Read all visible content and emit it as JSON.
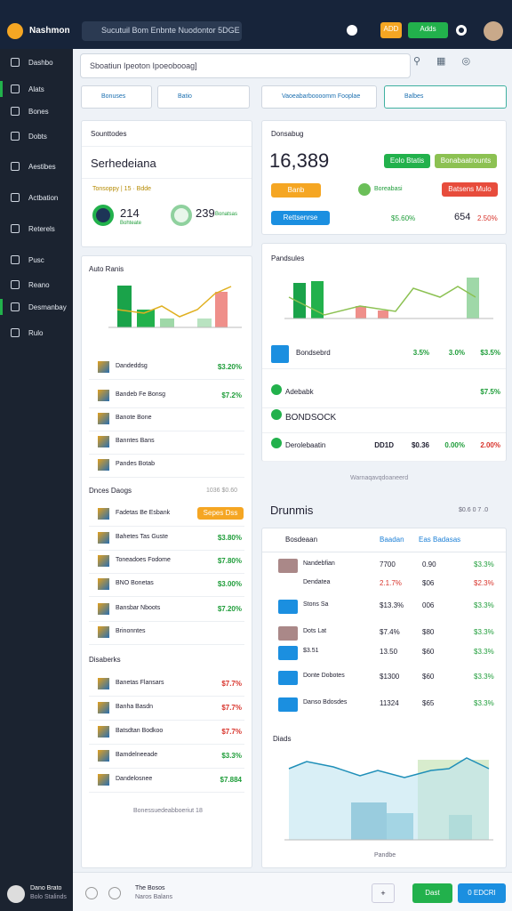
{
  "header": {
    "brand": "Nashmon",
    "search": "Sucutuil Bom Enbnte Nuodontor 5DGE",
    "button_orange": "ADD",
    "button_green": "Adds"
  },
  "sidebar": {
    "items": [
      "Dashbo",
      "Alats",
      "Bones",
      "Dobts",
      "Aestibes",
      "Actbation",
      "Reterels",
      "Pusc",
      "Reano",
      "Desmanbay",
      "Rulo"
    ],
    "user_name": "Dano Brato",
    "user_sub": "Bolo Stalinds"
  },
  "searchbar": {
    "placeholder": "Sboatiun Ipeoton Ipoeobooag]"
  },
  "filters": [
    "Bonuses",
    "Batio",
    "Vaoeabarboooomm Fooplae",
    "Balbes"
  ],
  "summary_card": {
    "header": "Sounttodes",
    "title": "Serhedeiana",
    "row": "Tonsoppy | 15 · Bdde",
    "stats": [
      {
        "value": "214",
        "label": "Bohteate"
      },
      {
        "value": "239",
        "label": "Bonatsas"
      }
    ]
  },
  "list_card": {
    "header": "Auto Ranis",
    "items": [
      {
        "label": "Dandeddsg",
        "value": "$3.20%"
      },
      {
        "label": "Bandeb Fe Bonsg",
        "value": "$7.2%"
      },
      {
        "label": "Banote Bone",
        "value": ""
      },
      {
        "label": "Banntes Bans",
        "value": ""
      },
      {
        "label": "Pandes Botab",
        "value": ""
      }
    ],
    "section1": {
      "title": "Dnces Daogs",
      "note": "1036 $0.60"
    },
    "items2": [
      {
        "label": "Fadetas Be Esbank",
        "value": "Sepes Dss"
      },
      {
        "label": "Bahetes Tas Guste",
        "value": "$3.80%"
      },
      {
        "label": "Toneadoes Fodome",
        "value": "$7.80%"
      },
      {
        "label": "BNO Bonetas",
        "value": "$3.00%"
      },
      {
        "label": "Bansbar Nboots",
        "value": "$7.20%"
      },
      {
        "label": "Brinonntes",
        "value": ""
      }
    ],
    "section2": {
      "title": "Disaberks"
    },
    "items3": [
      {
        "label": "Banetas Flansars",
        "value": "$7.7%"
      },
      {
        "label": "Banha Basdn",
        "value": "$7.7%"
      },
      {
        "label": "Batsdtan Bodkoo",
        "value": "$7.7%"
      },
      {
        "label": "Bamdelneeade",
        "value": "$3.3%"
      },
      {
        "label": "Dandelosnee",
        "value": "$7.884"
      }
    ],
    "footer": "Bonessuedeabboeriut 18"
  },
  "balance_card": {
    "header": "Donsabug",
    "amount": "16,389",
    "button1": "Eolo Btatis",
    "button2": "Bonabaatrounts",
    "chip": "Banb",
    "avatar_label": "Boreabasi",
    "button_red": "Batsens Mulo",
    "button_blue": "Rettsenrse",
    "stat1": "$5.60%",
    "stat2": "654",
    "stat3": "2.50%"
  },
  "chart_card": {
    "header": "Pandsules",
    "rows": [
      {
        "label": "Bondsebrd",
        "values": [
          "3.5%",
          "3.0%",
          "$3.5%"
        ]
      },
      {
        "label": "Adebabk",
        "values": [
          "$7.5%"
        ]
      },
      {
        "label": "BONDSOCK",
        "values": []
      },
      {
        "label": "Derolebaatin",
        "values": [
          "DD1D",
          "$0.36",
          "0.00%",
          "2.00%"
        ]
      }
    ]
  },
  "note": "Warnaqavqdoaneerd",
  "section_heading": {
    "title": "Drunmis",
    "note": "$0.6 0 7 .0"
  },
  "table": {
    "columns": [
      "Bosdeaan",
      "Baadan",
      "Eas Badasas"
    ],
    "rows": [
      [
        "Nandebfian",
        "7700",
        "0.90",
        "$3.3%"
      ],
      [
        "Dendatea",
        "2.1.7%",
        "$06",
        "$2.3%"
      ],
      [
        "Stons Sa",
        "$13.3%",
        "006",
        "$3.3%"
      ],
      [
        "Dots Lat",
        "$7.4%",
        "$80",
        "$3.3%"
      ],
      [
        "$3.51",
        "13.50",
        "$60",
        "$3.3%"
      ],
      [
        "Donte Dobotes",
        "$1300",
        "$60",
        "$3.3%"
      ],
      [
        "Danso Bdosdes",
        "11324",
        "$65",
        "$3.3%"
      ]
    ],
    "chart_title": "Diads",
    "chart_footer": "Pandbe"
  },
  "bottom_bar": {
    "title": "The Bosos",
    "subtitle": "Naros Balans",
    "button1": "Dast",
    "button2": "0 EDCRI"
  }
}
